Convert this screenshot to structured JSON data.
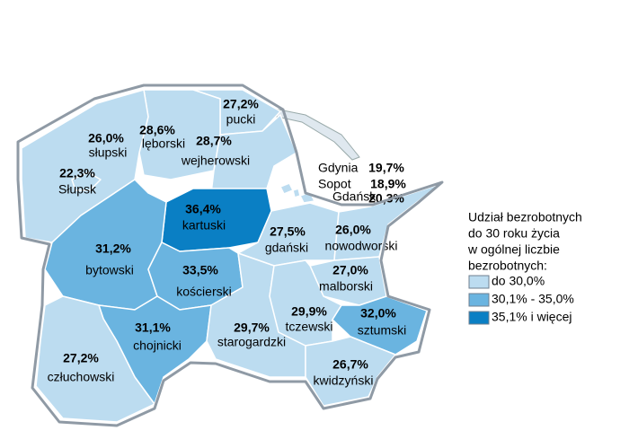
{
  "chart_data": {
    "type": "choropleth",
    "categories": [
      "pucki",
      "lęborski",
      "wejherowski",
      "słupski",
      "Słupsk",
      "kartuski",
      "Gdynia",
      "Sopot",
      "Gdańsk",
      "gdański",
      "nowodworski",
      "bytowski",
      "kościerski",
      "malborski",
      "chojnicki",
      "starogardzki",
      "tczewski",
      "sztumski",
      "człuchowski",
      "kwidzyński"
    ],
    "values": [
      27.2,
      28.6,
      28.7,
      26.0,
      22.3,
      36.4,
      19.7,
      18.9,
      20.3,
      27.5,
      26.0,
      31.2,
      33.5,
      27.0,
      31.1,
      29.7,
      29.9,
      32.0,
      27.2,
      26.7
    ],
    "value_labels": [
      "27,2%",
      "28,6%",
      "28,7%",
      "26,0%",
      "22,3%",
      "36,4%",
      "19,7%",
      "18,9%",
      "20,3%",
      "27,5%",
      "26,0%",
      "31,2%",
      "33,5%",
      "27,0%",
      "31,1%",
      "29,7%",
      "29,9%",
      "32,0%",
      "27,2%",
      "26,7%"
    ],
    "colors": [
      "#bcdcf0",
      "#bcdcf0",
      "#bcdcf0",
      "#bcdcf0",
      "#bcdcf0",
      "#0a7fc4",
      "#bcdcf0",
      "#bcdcf0",
      "#bcdcf0",
      "#bcdcf0",
      "#bcdcf0",
      "#6ab4e0",
      "#6ab4e0",
      "#bcdcf0",
      "#6ab4e0",
      "#bcdcf0",
      "#bcdcf0",
      "#6ab4e0",
      "#bcdcf0",
      "#bcdcf0"
    ],
    "legend_title": [
      "Udział bezrobotnych",
      "do 30 roku życia",
      "w ogólnej liczbie",
      "bezrobotnych:"
    ],
    "legend": [
      {
        "label": "do 30,0%",
        "color": "#bcdcf0"
      },
      {
        "label": "30,1% - 35,0%",
        "color": "#6ab4e0"
      },
      {
        "label": "35,1% i więcej",
        "color": "#0a7fc4"
      }
    ]
  }
}
